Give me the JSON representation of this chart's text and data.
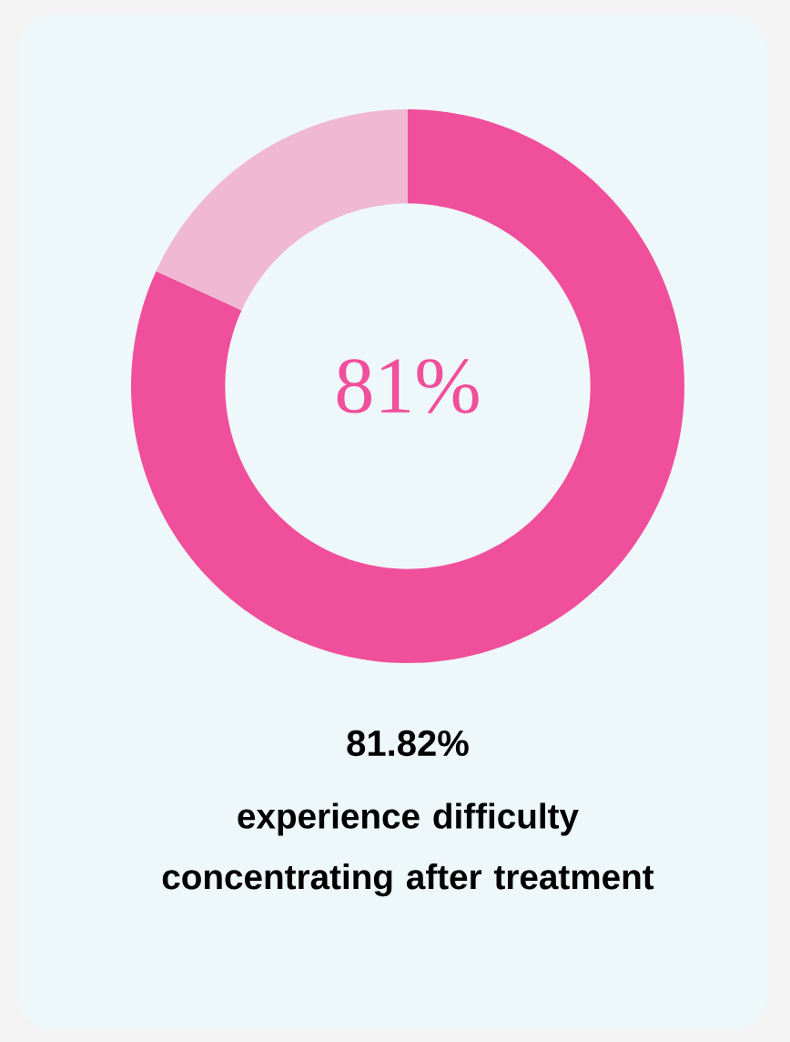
{
  "chart_data": {
    "type": "donut",
    "title": "81.82%",
    "subtitle": "experience difficulty concentrating after treatment",
    "categories": [
      null,
      null
    ],
    "values": [
      81.82,
      18.18
    ],
    "colors": [
      "#f04f9b",
      "#f0b8d2"
    ],
    "annotations": [
      "81%"
    ]
  }
}
